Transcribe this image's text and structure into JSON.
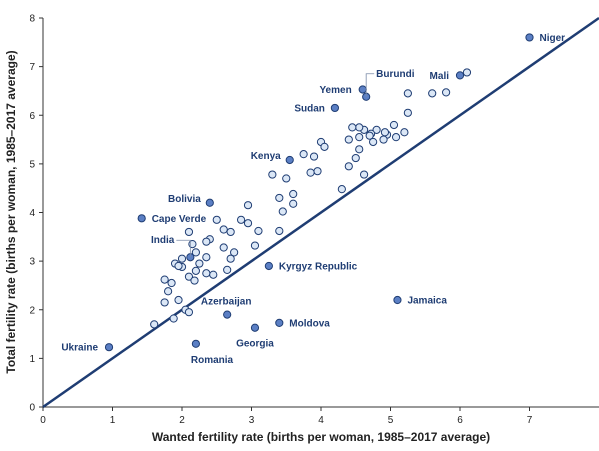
{
  "chart_data": {
    "type": "scatter",
    "xlabel": "Wanted fertility rate (births per woman, 1985–2017 average)",
    "ylabel": "Total fertility rate (births per woman, 1985–2017 average)",
    "xlim": [
      0,
      8
    ],
    "ylim": [
      0,
      8
    ],
    "xticks": [
      0,
      1,
      2,
      3,
      4,
      5,
      6,
      7
    ],
    "yticks": [
      0,
      1,
      2,
      3,
      4,
      5,
      6,
      7,
      8
    ],
    "grid": false,
    "reference_line": {
      "from": [
        0,
        0
      ],
      "to": [
        8,
        8
      ]
    },
    "colors": {
      "highlighted": "#5b7fc4",
      "other": "#dbe7f6",
      "outline": "#1f3d73",
      "line": "#1f3d73"
    },
    "highlighted_points": [
      {
        "label": "Niger",
        "x": 7.0,
        "y": 7.6
      },
      {
        "label": "Mali",
        "x": 6.0,
        "y": 6.82
      },
      {
        "label": "Burundi",
        "x": 4.65,
        "y": 6.38
      },
      {
        "label": "Yemen",
        "x": 4.6,
        "y": 6.53
      },
      {
        "label": "Sudan",
        "x": 4.2,
        "y": 6.15
      },
      {
        "label": "Kenya",
        "x": 3.55,
        "y": 5.08
      },
      {
        "label": "Bolivia",
        "x": 2.4,
        "y": 4.2
      },
      {
        "label": "Cape Verde",
        "x": 1.42,
        "y": 3.88
      },
      {
        "label": "India",
        "x": 2.12,
        "y": 3.08
      },
      {
        "label": "Kyrgyz Republic",
        "x": 3.25,
        "y": 2.9
      },
      {
        "label": "Azerbaijan",
        "x": 2.65,
        "y": 1.9
      },
      {
        "label": "Jamaica",
        "x": 5.1,
        "y": 2.2
      },
      {
        "label": "Moldova",
        "x": 3.4,
        "y": 1.73
      },
      {
        "label": "Georgia",
        "x": 3.05,
        "y": 1.63
      },
      {
        "label": "Ukraine",
        "x": 0.95,
        "y": 1.23
      },
      {
        "label": "Romania",
        "x": 2.2,
        "y": 1.3
      }
    ],
    "other_points": [
      {
        "x": 6.1,
        "y": 6.88
      },
      {
        "x": 5.8,
        "y": 6.47
      },
      {
        "x": 5.6,
        "y": 6.45
      },
      {
        "x": 5.25,
        "y": 6.45
      },
      {
        "x": 5.25,
        "y": 6.05
      },
      {
        "x": 5.2,
        "y": 5.65
      },
      {
        "x": 5.05,
        "y": 5.8
      },
      {
        "x": 5.08,
        "y": 5.55
      },
      {
        "x": 4.95,
        "y": 5.6
      },
      {
        "x": 4.92,
        "y": 5.65
      },
      {
        "x": 4.9,
        "y": 5.5
      },
      {
        "x": 4.8,
        "y": 5.7
      },
      {
        "x": 4.72,
        "y": 5.62
      },
      {
        "x": 4.62,
        "y": 5.7
      },
      {
        "x": 4.55,
        "y": 5.75
      },
      {
        "x": 4.45,
        "y": 5.75
      },
      {
        "x": 4.4,
        "y": 5.5
      },
      {
        "x": 4.55,
        "y": 5.55
      },
      {
        "x": 4.7,
        "y": 5.58
      },
      {
        "x": 4.55,
        "y": 5.3
      },
      {
        "x": 4.75,
        "y": 5.45
      },
      {
        "x": 4.5,
        "y": 5.12
      },
      {
        "x": 4.4,
        "y": 4.95
      },
      {
        "x": 4.62,
        "y": 4.78
      },
      {
        "x": 4.3,
        "y": 4.48
      },
      {
        "x": 4.0,
        "y": 5.45
      },
      {
        "x": 4.05,
        "y": 5.35
      },
      {
        "x": 3.9,
        "y": 5.15
      },
      {
        "x": 3.75,
        "y": 5.2
      },
      {
        "x": 3.95,
        "y": 4.85
      },
      {
        "x": 3.85,
        "y": 4.82
      },
      {
        "x": 3.3,
        "y": 4.78
      },
      {
        "x": 3.5,
        "y": 4.7
      },
      {
        "x": 3.6,
        "y": 4.38
      },
      {
        "x": 3.4,
        "y": 4.3
      },
      {
        "x": 3.6,
        "y": 4.18
      },
      {
        "x": 3.45,
        "y": 4.02
      },
      {
        "x": 2.95,
        "y": 4.15
      },
      {
        "x": 2.85,
        "y": 3.85
      },
      {
        "x": 2.95,
        "y": 3.78
      },
      {
        "x": 3.1,
        "y": 3.62
      },
      {
        "x": 3.05,
        "y": 3.32
      },
      {
        "x": 3.4,
        "y": 3.62
      },
      {
        "x": 2.5,
        "y": 3.85
      },
      {
        "x": 2.6,
        "y": 3.65
      },
      {
        "x": 2.7,
        "y": 3.6
      },
      {
        "x": 2.4,
        "y": 3.45
      },
      {
        "x": 2.35,
        "y": 3.4
      },
      {
        "x": 2.6,
        "y": 3.28
      },
      {
        "x": 2.75,
        "y": 3.18
      },
      {
        "x": 2.7,
        "y": 3.05
      },
      {
        "x": 2.1,
        "y": 3.6
      },
      {
        "x": 2.15,
        "y": 3.35
      },
      {
        "x": 2.0,
        "y": 3.05
      },
      {
        "x": 2.2,
        "y": 3.18
      },
      {
        "x": 2.35,
        "y": 3.08
      },
      {
        "x": 2.25,
        "y": 2.95
      },
      {
        "x": 1.9,
        "y": 2.95
      },
      {
        "x": 2.0,
        "y": 2.88
      },
      {
        "x": 1.95,
        "y": 2.9
      },
      {
        "x": 2.2,
        "y": 2.8
      },
      {
        "x": 2.35,
        "y": 2.75
      },
      {
        "x": 2.65,
        "y": 2.82
      },
      {
        "x": 2.1,
        "y": 2.68
      },
      {
        "x": 2.18,
        "y": 2.6
      },
      {
        "x": 1.75,
        "y": 2.62
      },
      {
        "x": 1.85,
        "y": 2.55
      },
      {
        "x": 1.8,
        "y": 2.38
      },
      {
        "x": 1.75,
        "y": 2.15
      },
      {
        "x": 1.95,
        "y": 2.2
      },
      {
        "x": 2.05,
        "y": 2.0
      },
      {
        "x": 2.1,
        "y": 1.95
      },
      {
        "x": 1.88,
        "y": 1.82
      },
      {
        "x": 1.6,
        "y": 1.7
      },
      {
        "x": 2.45,
        "y": 2.72
      }
    ],
    "labels": [
      {
        "text": "Niger",
        "for": "Niger"
      },
      {
        "text": "Mali",
        "for": "Mali"
      },
      {
        "text": "Burundi",
        "for": "Burundi"
      },
      {
        "text": "Yemen",
        "for": "Yemen"
      },
      {
        "text": "Sudan",
        "for": "Sudan"
      },
      {
        "text": "Kenya",
        "for": "Kenya"
      },
      {
        "text": "Bolivia",
        "for": "Bolivia"
      },
      {
        "text": "Cape Verde",
        "for": "Cape Verde"
      },
      {
        "text": "India",
        "for": "India"
      },
      {
        "text": "Kyrgyz Republic",
        "for": "Kyrgyz Republic"
      },
      {
        "text": "Azerbaijan",
        "for": "Azerbaijan"
      },
      {
        "text": "Jamaica",
        "for": "Jamaica"
      },
      {
        "text": "Moldova",
        "for": "Moldova"
      },
      {
        "text": "Georgia",
        "for": "Georgia"
      },
      {
        "text": "Ukraine",
        "for": "Ukraine"
      },
      {
        "text": "Romania",
        "for": "Romania"
      }
    ]
  }
}
